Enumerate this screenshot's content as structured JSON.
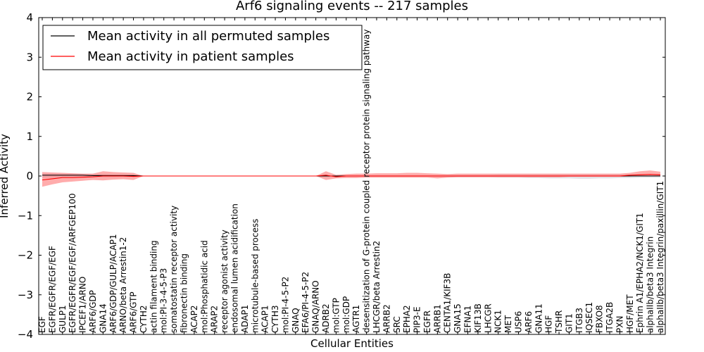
{
  "chart_data": {
    "type": "line",
    "title": "Arf6 signaling events -- 217 samples",
    "xlabel": "Cellular Entities",
    "ylabel": "Inferred Activity",
    "ylim": [
      -4,
      4
    ],
    "yticks": [
      -4,
      -3,
      -2,
      -1,
      0,
      1,
      2,
      3,
      4
    ],
    "ytick_labels": [
      "−4",
      "−3",
      "−2",
      "−1",
      "0",
      "1",
      "2",
      "3",
      "4"
    ],
    "legend_position": "top-left",
    "categories": [
      "EGF",
      "EGFR/EGFR/EGF/EGF",
      "GULP1",
      "EGFR/EGFR/EGF/EGF/ARFGEP100",
      "IPCEF1/ARNO",
      "ARF6/GDP",
      "GNA14",
      "ARF6/GDP/GULP/ACAP1",
      "ARNO/beta Arrestin1-2",
      "ARF6/GTP",
      "CYTH2",
      "actin filament binding",
      "mol:PI-3-4-5-P3",
      "somatostatin receptor activity",
      "fibronectin binding",
      "ACAP2",
      "mol:Phosphatidic acid",
      "ARAP2",
      "receptor agonist activity",
      "endosomal lumen acidification",
      "ADAP1",
      "microtubule-based process",
      "ACAP1",
      "CYTH3",
      "mol:PI-4-5-P2",
      "GNAQ",
      "EFA6/PI-4-5-P2",
      "GNAQ/ARNO",
      "ADRB2",
      "mol:GTP",
      "mol:GDP",
      "AGTR1",
      "desensitization of G-protein coupled receptor protein signaling pathway",
      "LHCGR/beta Arrestin2",
      "ARRB2",
      "SRC",
      "EPHA2",
      "PIP3-E",
      "EGFR",
      "ARRB1",
      "CENTA1/KIF3B",
      "GNA15",
      "EFNA1",
      "KIF13B",
      "LHCGR",
      "NCK1",
      "MET",
      "USP6",
      "ARF6",
      "GNA11",
      "HGF",
      "TSHR",
      "GIT1",
      "ITGB3",
      "IQSEC1",
      "FBXO8",
      "ITGA2B",
      "PXN",
      "HGF/MET",
      "Ephrin A1/EPHA2/NCK1/GIT1",
      "alphaIIb/beta3 Integrin",
      "alphaIIb/beta3 Integrin/paxillin/GIT1"
    ],
    "series": [
      {
        "name": "Mean activity in all permuted samples",
        "color": "#000000",
        "band_color": "#c8c8d2",
        "values": [
          0.02,
          0.02,
          0.02,
          0.02,
          0.02,
          0.01,
          0.01,
          0.01,
          0.01,
          0.01,
          0,
          0,
          0,
          0,
          0,
          0,
          0,
          0,
          0,
          0,
          0,
          0,
          0,
          0,
          0,
          0,
          0,
          0,
          0,
          0,
          0,
          0,
          0,
          0,
          0,
          0,
          0,
          0,
          0,
          0,
          0,
          0,
          0,
          0,
          0,
          0,
          0,
          0,
          0,
          0,
          0,
          0,
          0,
          0,
          0,
          0,
          0,
          0,
          0,
          0,
          0,
          0
        ],
        "lower": [
          -0.04,
          -0.04,
          -0.04,
          -0.04,
          -0.03,
          -0.03,
          -0.03,
          -0.03,
          -0.02,
          -0.02,
          0,
          0,
          0,
          0,
          0,
          0,
          0,
          0,
          0,
          0,
          0,
          0,
          0,
          0,
          0,
          0,
          0,
          0,
          0,
          -0.02,
          -0.02,
          -0.02,
          -0.02,
          -0.02,
          -0.02,
          -0.02,
          -0.02,
          -0.02,
          -0.02,
          -0.02,
          -0.03,
          -0.03,
          -0.03,
          -0.03,
          -0.03,
          -0.04,
          -0.04,
          -0.04,
          -0.05,
          -0.05,
          -0.06,
          -0.06,
          -0.06,
          -0.07,
          -0.07,
          -0.06,
          -0.06,
          -0.05,
          -0.05,
          -0.04,
          -0.04,
          -0.04
        ],
        "upper": [
          0.06,
          0.06,
          0.06,
          0.06,
          0.05,
          0.05,
          0.05,
          0.04,
          0.04,
          0.03,
          0,
          0,
          0,
          0,
          0,
          0,
          0,
          0,
          0,
          0,
          0,
          0,
          0,
          0,
          0,
          0,
          0,
          0,
          0,
          0.02,
          0.02,
          0.02,
          0.02,
          0.02,
          0.02,
          0.02,
          0.02,
          0.02,
          0.02,
          0.02,
          0.03,
          0.03,
          0.03,
          0.03,
          0.03,
          0.04,
          0.04,
          0.04,
          0.04,
          0.04,
          0.04,
          0.04,
          0.04,
          0.04,
          0.04,
          0.04,
          0.04,
          0.04,
          0.04,
          0.04,
          0.04,
          0.04
        ]
      },
      {
        "name": "Mean activity in patient samples",
        "color": "#ff0000",
        "band_color": "#ff5a5a",
        "values": [
          -0.1,
          -0.07,
          -0.04,
          -0.04,
          -0.03,
          -0.02,
          0,
          0,
          0,
          -0.01,
          0,
          0,
          0,
          0,
          0,
          0,
          0,
          0,
          0,
          0,
          0,
          0,
          0,
          0,
          0,
          0,
          0,
          0,
          0.02,
          -0.02,
          0,
          0,
          0,
          0,
          0,
          0,
          0,
          0,
          0,
          0,
          0,
          0,
          0,
          0,
          0,
          0,
          0,
          0,
          0,
          0,
          0,
          0,
          0,
          0,
          0,
          0,
          0,
          0,
          0.02,
          0.03,
          0.04,
          0.03
        ],
        "lower": [
          -0.27,
          -0.21,
          -0.16,
          -0.14,
          -0.12,
          -0.1,
          -0.11,
          -0.09,
          -0.08,
          -0.1,
          0,
          0,
          0,
          0,
          0,
          0,
          0,
          0,
          0,
          0,
          0,
          0,
          0,
          0,
          0,
          0,
          0,
          0,
          -0.1,
          -0.06,
          -0.05,
          -0.05,
          -0.04,
          -0.04,
          -0.04,
          -0.04,
          -0.04,
          -0.04,
          -0.04,
          -0.06,
          -0.04,
          -0.03,
          -0.03,
          -0.03,
          -0.03,
          -0.03,
          -0.03,
          -0.03,
          -0.03,
          -0.03,
          -0.03,
          -0.03,
          -0.02,
          -0.02,
          -0.02,
          -0.02,
          -0.02,
          -0.02,
          -0.01,
          0,
          0.01,
          0.01
        ],
        "upper": [
          0.1,
          0.09,
          0.08,
          0.07,
          0.06,
          0.06,
          0.12,
          0.1,
          0.09,
          0.08,
          0,
          0,
          0,
          0,
          0,
          0,
          0,
          0,
          0,
          0,
          0,
          0,
          0,
          0,
          0,
          0,
          0,
          0,
          0.12,
          0.03,
          0.05,
          0.06,
          0.06,
          0.07,
          0.07,
          0.07,
          0.08,
          0.08,
          0.07,
          0.06,
          0.05,
          0.06,
          0.06,
          0.06,
          0.06,
          0.06,
          0.06,
          0.06,
          0.06,
          0.06,
          0.06,
          0.06,
          0.06,
          0.06,
          0.06,
          0.06,
          0.06,
          0.06,
          0.08,
          0.12,
          0.14,
          0.11
        ]
      }
    ]
  }
}
